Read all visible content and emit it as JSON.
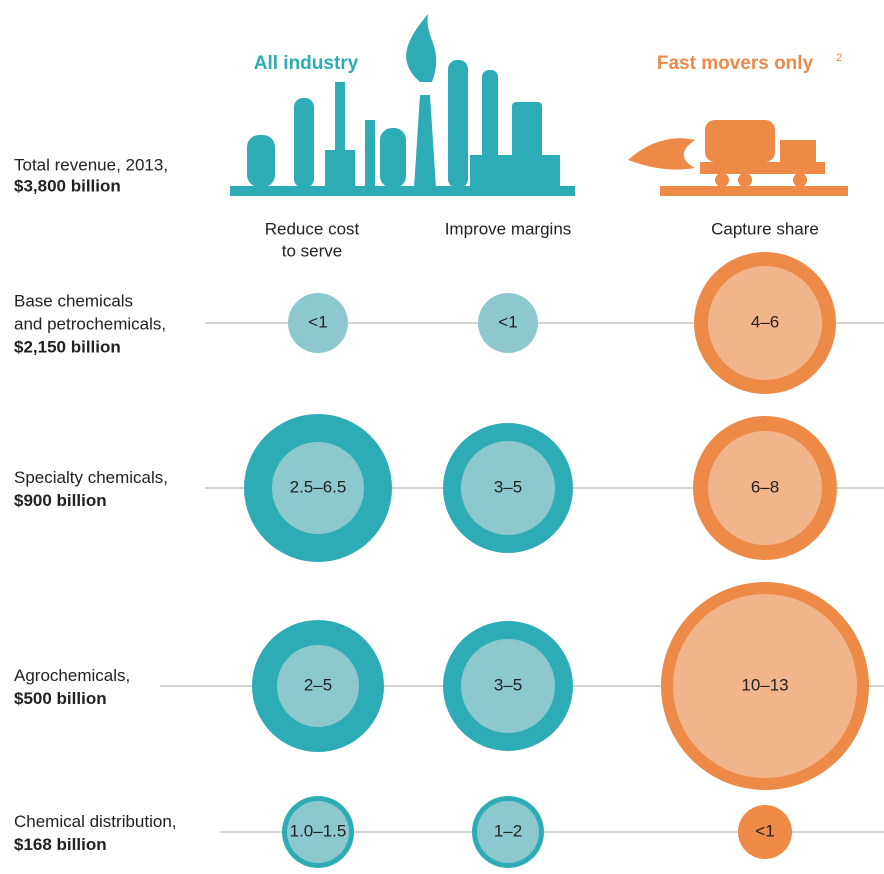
{
  "header": {
    "left_title": "All industry",
    "right_title": "Fast movers only",
    "right_title_note": "2"
  },
  "total": {
    "label": "Total revenue, 2013,",
    "value": "$3,800 billion"
  },
  "columns": [
    [
      "Reduce cost",
      "to serve"
    ],
    [
      "Improve margins"
    ],
    [
      "Capture share"
    ]
  ],
  "rows": [
    {
      "label": [
        "Base chemicals",
        "and petrochemicals,"
      ],
      "value": "$2,150 billion",
      "cells": [
        "<1",
        "<1",
        "4–6"
      ]
    },
    {
      "label": [
        "Specialty chemicals,"
      ],
      "value": "$900 billion",
      "cells": [
        "2.5–6.5",
        "3–5",
        "6–8"
      ]
    },
    {
      "label": [
        "Agrochemicals,"
      ],
      "value": "$500 billion",
      "cells": [
        "2–5",
        "3–5",
        "10–13"
      ]
    },
    {
      "label": [
        "Chemical distribution,"
      ],
      "value": "$168 billion",
      "cells": [
        "1.0–1.5",
        "1–2",
        "<1"
      ]
    }
  ]
}
